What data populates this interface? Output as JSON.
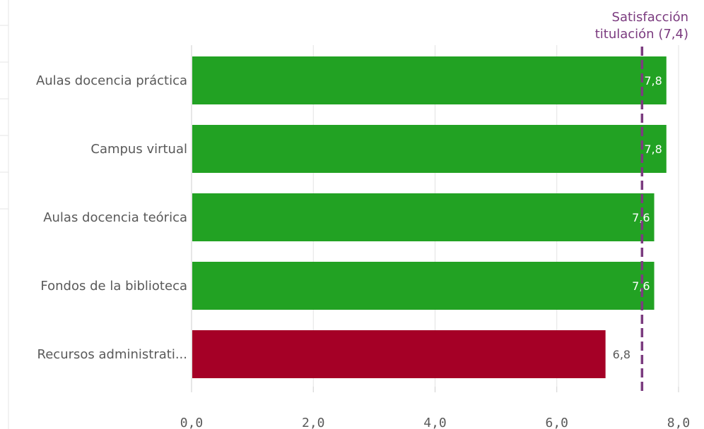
{
  "chart_data": {
    "type": "bar",
    "orientation": "horizontal",
    "categories": [
      "Aulas docencia práctica",
      "Campus virtual",
      "Aulas docencia teórica",
      "Fondos de la biblioteca",
      "Recursos administrati..."
    ],
    "values": [
      7.8,
      7.8,
      7.6,
      7.6,
      6.8
    ],
    "value_labels": [
      "7,8",
      "7,8",
      "7,6",
      "7,6",
      "6,8"
    ],
    "bar_colors": [
      "#22a223",
      "#22a223",
      "#22a223",
      "#22a223",
      "#a50026"
    ],
    "xlim": [
      0,
      8
    ],
    "xticks": [
      0,
      2,
      4,
      6,
      8
    ],
    "xtick_labels": [
      "0,0",
      "2,0",
      "4,0",
      "6,0",
      "8,0"
    ],
    "grid": true,
    "reference_line": {
      "value": 7.4,
      "label_lines": [
        "Satisfacción",
        "titulación (7,4)"
      ],
      "color": "#7b3b7f",
      "style": "dashed"
    },
    "title": "",
    "xlabel": "",
    "ylabel": ""
  }
}
